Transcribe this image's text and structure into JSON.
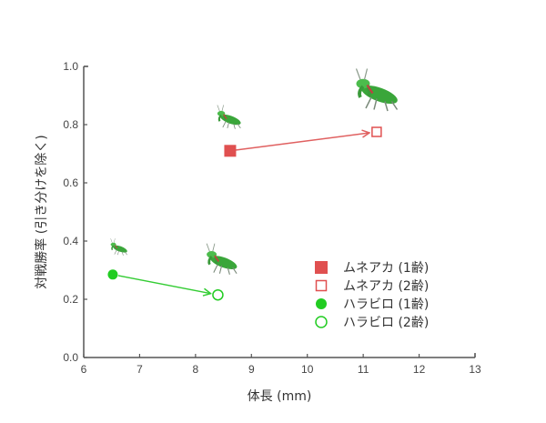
{
  "chart_data": {
    "type": "scatter",
    "title": "",
    "xlabel": "体長 (mm)",
    "ylabel": "対戦勝率 (引き分けを除く)",
    "xlim": [
      6,
      13
    ],
    "ylim": [
      0.0,
      1.0
    ],
    "xticks": [
      "6",
      "7",
      "8",
      "9",
      "10",
      "11",
      "12",
      "13"
    ],
    "yticks": [
      "0.0",
      "0.2",
      "0.4",
      "0.6",
      "0.8",
      "1.0"
    ],
    "grid": false,
    "legend_position": "lower right (inside plot)",
    "series": [
      {
        "name": "ムネアカ (1齢)",
        "marker": "square-filled",
        "color": "#e05050",
        "x": [
          8.62
        ],
        "y": [
          0.71
        ]
      },
      {
        "name": "ムネアカ (2齢)",
        "marker": "square-open",
        "color": "#e05050",
        "x": [
          11.24
        ],
        "y": [
          0.775
        ]
      },
      {
        "name": "ハラビロ (1齢)",
        "marker": "circle-filled",
        "color": "#22cc22",
        "x": [
          6.52
        ],
        "y": [
          0.285
        ]
      },
      {
        "name": "ハラビロ (2齢)",
        "marker": "circle-open",
        "color": "#22cc22",
        "x": [
          8.4
        ],
        "y": [
          0.215
        ]
      }
    ],
    "annotations": [
      {
        "type": "arrow",
        "from_series": "ムネアカ (1齢)",
        "to_series": "ムネアカ (2齢)",
        "color": "#e06060"
      },
      {
        "type": "arrow",
        "from_series": "ハラビロ (1齢)",
        "to_series": "ハラビロ (2齢)",
        "color": "#33cc33"
      },
      {
        "type": "image",
        "label": "mantis-illustration",
        "near": "ムネアカ (1齢)",
        "size": "small"
      },
      {
        "type": "image",
        "label": "mantis-illustration",
        "near": "ムネアカ (2齢)",
        "size": "large"
      },
      {
        "type": "image",
        "label": "mantis-illustration",
        "near": "ハラビロ (1齢)",
        "size": "small"
      },
      {
        "type": "image",
        "label": "mantis-illustration",
        "near": "ハラビロ (2齢)",
        "size": "medium"
      }
    ]
  },
  "colors": {
    "munearaka": "#e05050",
    "harabiro": "#22cc22",
    "axis": "#555555"
  }
}
